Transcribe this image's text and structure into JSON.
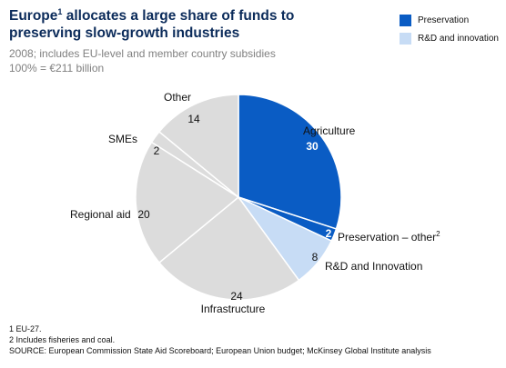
{
  "title": {
    "text_before": "Europe",
    "superscript": "1",
    "text_after": " allocates a large share of funds to preserving slow-growth industries"
  },
  "subtitle": {
    "line1": "2008; includes EU-level and member country subsidies",
    "line2": "100% = €211 billion"
  },
  "colors": {
    "preservation": "#0a5cc4",
    "rnd": "#c7dcf5",
    "other": "#dcdcdc",
    "title": "#0b2b5a"
  },
  "legend": [
    {
      "label": "Preservation",
      "color": "#0a5cc4"
    },
    {
      "label": "R&D and innovation",
      "color": "#c7dcf5"
    }
  ],
  "chart_data": {
    "type": "pie",
    "total": "€211 billion",
    "start": "12 o'clock",
    "direction": "clockwise",
    "slices": [
      {
        "label": "Agriculture",
        "value": 30,
        "category": "Preservation",
        "color": "#0a5cc4",
        "sup": ""
      },
      {
        "label": "Preservation – other",
        "value": 2,
        "category": "Preservation",
        "color": "#0a5cc4",
        "sup": "2"
      },
      {
        "label": "R&D and Innovation",
        "value": 8,
        "category": "R&D and innovation",
        "color": "#c7dcf5",
        "sup": ""
      },
      {
        "label": "Infrastructure",
        "value": 24,
        "category": "",
        "color": "#dcdcdc",
        "sup": ""
      },
      {
        "label": "Regional aid",
        "value": 20,
        "category": "",
        "color": "#dcdcdc",
        "sup": ""
      },
      {
        "label": "SMEs",
        "value": 2,
        "category": "",
        "color": "#dcdcdc",
        "sup": ""
      },
      {
        "label": "Other",
        "value": 14,
        "category": "",
        "color": "#dcdcdc",
        "sup": ""
      }
    ]
  },
  "footnotes": {
    "note1": "1  EU-27.",
    "note2": "2  Includes fisheries and coal.",
    "source": "SOURCE: European Commission State Aid Scoreboard; European Union budget; McKinsey Global Institute analysis"
  }
}
